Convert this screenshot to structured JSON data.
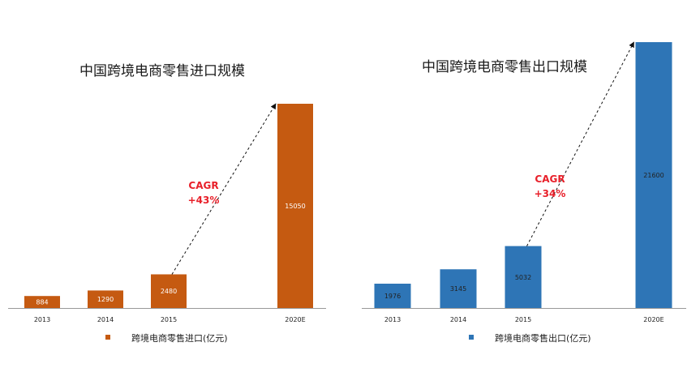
{
  "chart_data": [
    {
      "type": "bar",
      "title": "中国跨境电商零售进口规模",
      "categories": [
        "2013",
        "2014",
        "2015",
        "2020E"
      ],
      "series": [
        {
          "name": "跨境电商零售进口(亿元)",
          "values": [
            884,
            1290,
            2480,
            15050
          ]
        }
      ],
      "annotation": {
        "line1": "CAGR",
        "line2": "+43%"
      },
      "colors": {
        "bar": "#c55a11",
        "label_light": "#ffffff",
        "label_dark": "#ffffff",
        "annotation": "#e8202a"
      },
      "legend_position": "bottom",
      "grid": false
    },
    {
      "type": "bar",
      "title": "中国跨境电商零售出口规模",
      "categories": [
        "2013",
        "2014",
        "2015",
        "2020E"
      ],
      "series": [
        {
          "name": "跨境电商零售出口(亿元)",
          "values": [
            1976,
            3145,
            5032,
            21600
          ]
        }
      ],
      "annotation": {
        "line1": "CAGR",
        "line2": "+34%"
      },
      "colors": {
        "bar": "#2e75b6",
        "label_light": "#222222",
        "label_dark": "#222222",
        "annotation": "#e8202a"
      },
      "legend_position": "bottom",
      "grid": false
    }
  ]
}
